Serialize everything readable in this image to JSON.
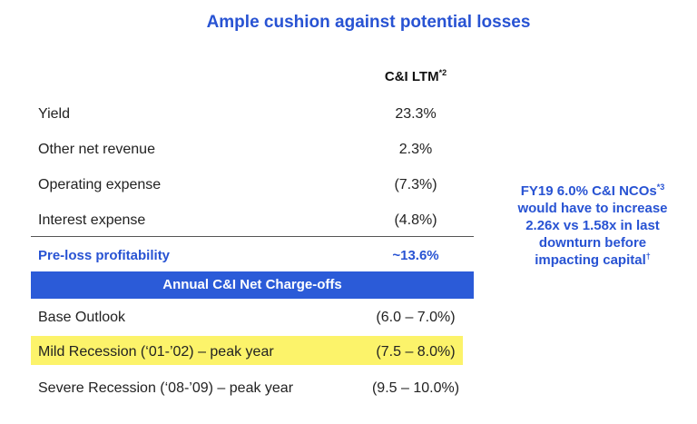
{
  "title": "Ample cushion against potential losses",
  "column_header": {
    "label": "C&I LTM",
    "footnote": "*2"
  },
  "profitability_rows": [
    {
      "label": "Yield",
      "value": "23.3%"
    },
    {
      "label": "Other net revenue",
      "value": "2.3%"
    },
    {
      "label": "Operating expense",
      "value": "(7.3%)"
    },
    {
      "label": "Interest expense",
      "value": "(4.8%)"
    }
  ],
  "total_row": {
    "label": "Pre-loss profitability",
    "value": "~13.6%"
  },
  "section_band": {
    "label": "Annual C&I Net Charge-offs"
  },
  "scenario_rows": [
    {
      "label": "Base Outlook",
      "value": "(6.0 – 7.0%)"
    },
    {
      "label": "Mild Recession (‘01-’02) – peak year",
      "value": "(7.5 – 8.0%)"
    },
    {
      "label": "Severe Recession (‘08-’09) – peak year",
      "value": "(9.5 – 10.0%)"
    }
  ],
  "side_note": {
    "line1": "FY19 6.0% C&I NCOs",
    "line1_footnote": "*3",
    "line2": "would have to increase",
    "line3": "2.26x vs 1.58x in last",
    "line4": "downturn before",
    "line5": "impacting capital",
    "line5_footnote": "†"
  },
  "colors": {
    "accent_blue": "#2853d3",
    "band_blue": "#2b5bd8",
    "highlight_yellow": "#fcf36a"
  }
}
